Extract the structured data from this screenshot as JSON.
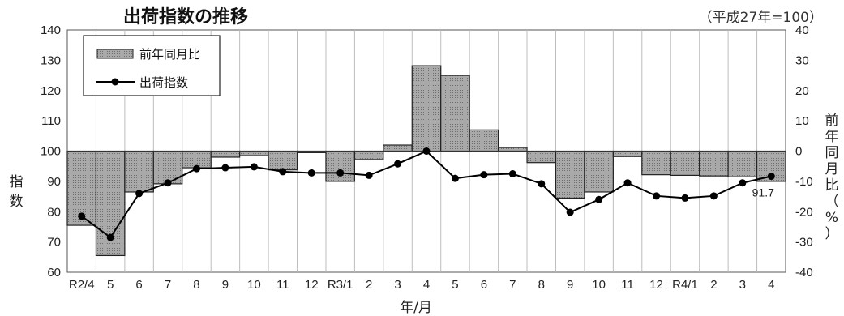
{
  "chart_data": {
    "type": "bar+line",
    "title": "出荷指数の推移",
    "note": "（平成27年=100）",
    "xlabel": "年/月",
    "ylabel_left": "指数",
    "ylabel_right": "前年同月比（%）",
    "categories": [
      "R2/4",
      "5",
      "6",
      "7",
      "8",
      "9",
      "10",
      "11",
      "12",
      "R3/1",
      "2",
      "3",
      "4",
      "5",
      "6",
      "7",
      "8",
      "9",
      "10",
      "11",
      "12",
      "R4/1",
      "2",
      "3",
      "4"
    ],
    "ylim_left": [
      60,
      140
    ],
    "yticks_left": [
      60,
      70,
      80,
      90,
      100,
      110,
      120,
      130,
      140
    ],
    "ylim_right": [
      -40,
      40
    ],
    "yticks_right": [
      -40,
      -30,
      -20,
      -10,
      0,
      10,
      20,
      30,
      40
    ],
    "grid": "vertical",
    "legend": "top-left",
    "series": [
      {
        "name": "前年同月比",
        "kind": "bar",
        "axis": "right",
        "values": [
          -24.5,
          -34.5,
          -13.5,
          -10.8,
          -5.5,
          -2.0,
          -1.5,
          -6.2,
          -0.5,
          -10.0,
          -2.8,
          2.0,
          28.2,
          25.0,
          7.0,
          1.2,
          -3.8,
          -15.5,
          -13.5,
          -1.8,
          -7.8,
          -8.0,
          -8.2,
          -8.5,
          -10.0
        ]
      },
      {
        "name": "出荷指数",
        "kind": "line",
        "axis": "left",
        "values": [
          78.5,
          71.5,
          86.0,
          89.5,
          94.2,
          94.5,
          94.8,
          93.2,
          92.8,
          92.8,
          92.0,
          95.8,
          100.0,
          91.0,
          92.2,
          92.5,
          89.2,
          79.8,
          84.0,
          89.5,
          85.2,
          84.5,
          85.2,
          89.5,
          91.7
        ]
      }
    ],
    "data_labels": [
      {
        "index": 24,
        "text": "91.7"
      }
    ]
  },
  "colors": {
    "bar_fill": "#a8a8a8",
    "bar_stroke": "#222222",
    "line": "#000000",
    "grid": "#bdbdbd",
    "axis": "#555555"
  }
}
